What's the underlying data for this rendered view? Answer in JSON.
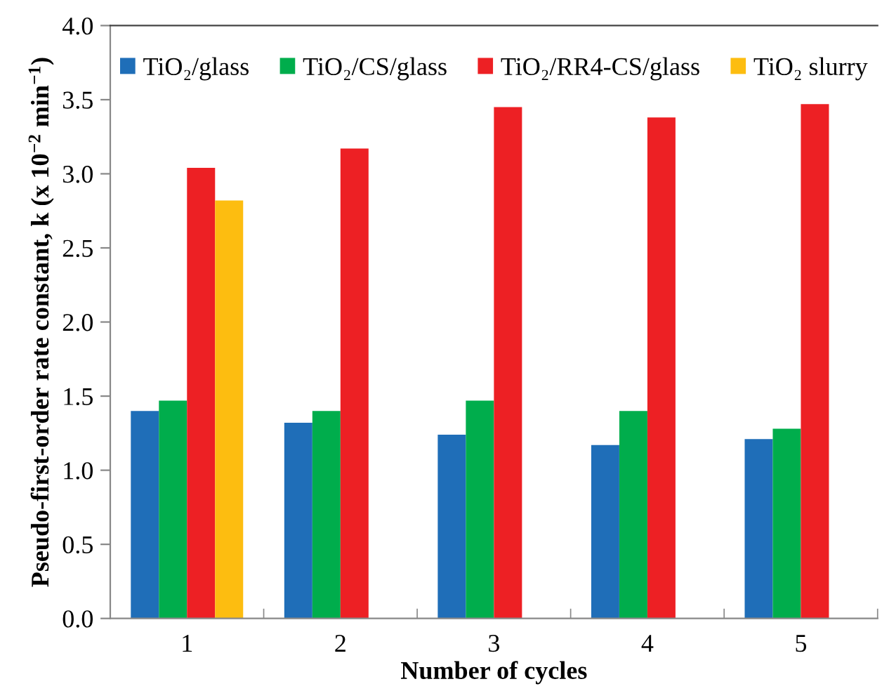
{
  "chart_data": {
    "type": "bar",
    "xlabel": "Number of cycles",
    "ylabel": "Pseudo-first-order rate constant, k (x 10$^{−2}$ min$^{−1}$)",
    "categories": [
      "1",
      "2",
      "3",
      "4",
      "5"
    ],
    "series": [
      {
        "name": "TiO₂/glass",
        "color": "#1f6eb8",
        "values": [
          1.4,
          1.32,
          1.24,
          1.17,
          1.21
        ]
      },
      {
        "name": "TiO₂/CS/glass",
        "color": "#00ad4c",
        "values": [
          1.47,
          1.4,
          1.47,
          1.4,
          1.28
        ]
      },
      {
        "name": "TiO₂/RR4-CS/glass",
        "color": "#ed2024",
        "values": [
          3.04,
          3.17,
          3.45,
          3.38,
          3.47
        ]
      },
      {
        "name": "TiO₂ slurry",
        "color": "#fdbd10",
        "values": [
          2.82,
          null,
          null,
          null,
          null
        ]
      }
    ],
    "ylim": [
      0,
      4
    ],
    "yticks": [
      {
        "value": 0,
        "label": "0.0"
      },
      {
        "value": 0.5,
        "label": "0.5"
      },
      {
        "value": 1,
        "label": "1.0"
      },
      {
        "value": 1.5,
        "label": "1.5"
      },
      {
        "value": 2,
        "label": "2.0"
      },
      {
        "value": 2.5,
        "label": "2.5"
      },
      {
        "value": 3,
        "label": "3.0"
      },
      {
        "value": 3.5,
        "label": "3.5"
      },
      {
        "value": 4,
        "label": "4.0"
      }
    ],
    "grid": false,
    "legend": "top"
  }
}
